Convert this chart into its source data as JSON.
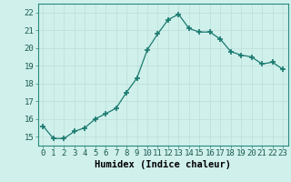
{
  "x": [
    0,
    1,
    2,
    3,
    4,
    5,
    6,
    7,
    8,
    9,
    10,
    11,
    12,
    13,
    14,
    15,
    16,
    17,
    18,
    19,
    20,
    21,
    22,
    23
  ],
  "y": [
    15.6,
    14.9,
    14.9,
    15.3,
    15.5,
    16.0,
    16.3,
    16.6,
    17.5,
    18.3,
    19.9,
    20.8,
    21.6,
    21.9,
    21.1,
    20.9,
    20.9,
    20.5,
    19.8,
    19.6,
    19.5,
    19.1,
    19.2,
    18.8
  ],
  "line_color": "#1a7a6e",
  "marker_color": "#1a7a6e",
  "bg_color": "#d0f0ec",
  "grid_color": "#c0e0dc",
  "xlabel": "Humidex (Indice chaleur)",
  "ylim": [
    14.5,
    22.5
  ],
  "xlim": [
    -0.5,
    23.5
  ],
  "yticks": [
    15,
    16,
    17,
    18,
    19,
    20,
    21,
    22
  ],
  "xticks": [
    0,
    1,
    2,
    3,
    4,
    5,
    6,
    7,
    8,
    9,
    10,
    11,
    12,
    13,
    14,
    15,
    16,
    17,
    18,
    19,
    20,
    21,
    22,
    23
  ],
  "tick_fontsize": 6.5,
  "xlabel_fontsize": 7.5
}
